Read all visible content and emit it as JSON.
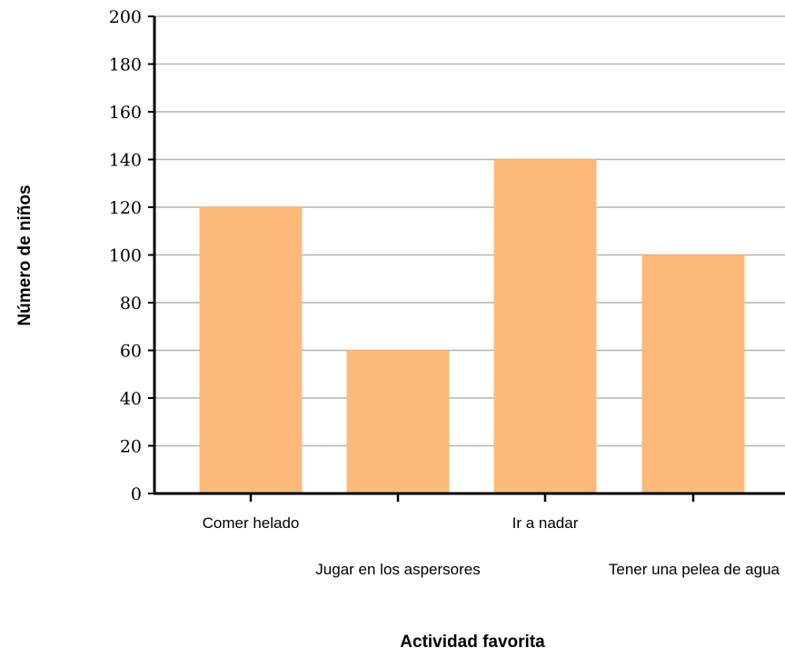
{
  "chart_data": {
    "type": "bar",
    "title": "",
    "xlabel": "Actividad favorita",
    "ylabel": "Número de niños",
    "categories": [
      "Comer helado",
      "Jugar en los aspersores",
      "Ir a nadar",
      "Tener una pelea de agua"
    ],
    "values": [
      120,
      60,
      140,
      100
    ],
    "ylim": [
      0,
      200
    ],
    "yticks": [
      "0",
      "20",
      "40",
      "60",
      "80",
      "100",
      "120",
      "140",
      "160",
      "180",
      "200"
    ],
    "grid": true,
    "bar_color": "#fdb97a",
    "grid_color": "#b3b3b3"
  }
}
